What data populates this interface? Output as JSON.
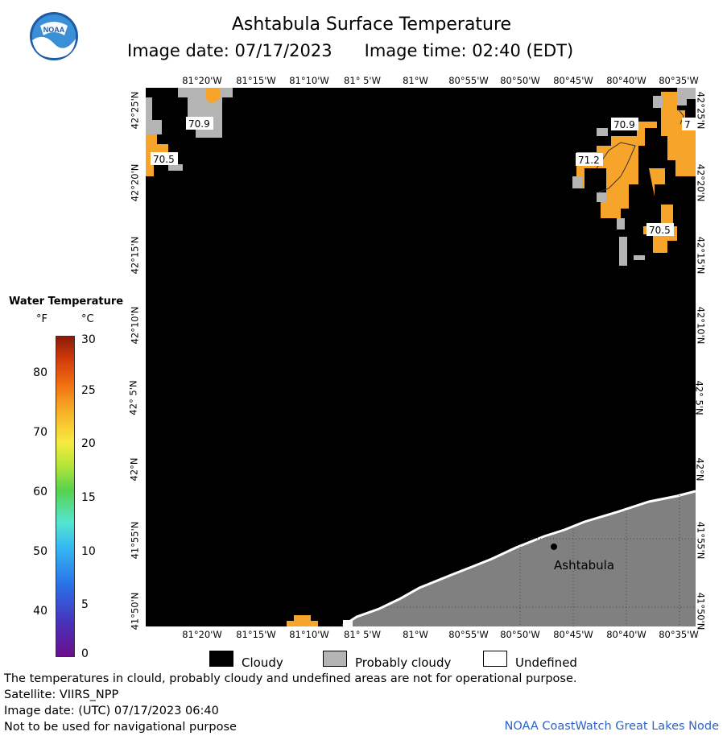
{
  "header": {
    "title": "Ashtabula Surface Temperature",
    "image_date_label": "Image date: 07/17/2023",
    "image_time_label": "Image time: 02:40 (EDT)",
    "logo_text": "NOAA"
  },
  "map": {
    "lon_labels": [
      "81°20'W",
      "81°15'W",
      "81°10'W",
      "81° 5'W",
      "81°W",
      "80°55'W",
      "80°50'W",
      "80°45'W",
      "80°40'W",
      "80°35'W"
    ],
    "lat_labels": [
      "42°25'N",
      "42°20'N",
      "42°15'N",
      "42°10'N",
      "42° 5'N",
      "42°N",
      "41°55'N",
      "41°50'N"
    ],
    "city_label": "Ashtabula",
    "isotherm_labels": [
      "70.9",
      "70.5",
      "70.9",
      "71.2",
      "70.5",
      "7"
    ],
    "colors": {
      "water_cloudy": "#000000",
      "probably_cloudy": "#b4b4b4",
      "land": "#808080",
      "warm": "#f7a42b",
      "undefined": "#ffffff"
    }
  },
  "legend": {
    "title": "Water Temperature",
    "unit_f": "°F",
    "unit_c": "°C",
    "f_ticks": [
      "80",
      "70",
      "60",
      "50",
      "40"
    ],
    "c_ticks": [
      "30",
      "25",
      "20",
      "15",
      "10",
      "5",
      "0"
    ],
    "cloudy": "Cloudy",
    "probably_cloudy": "Probably cloudy",
    "undefined": "Undefined"
  },
  "footer": {
    "line1": "The temperatures in clould, probably cloudy and undefined areas are not for operational purpose.",
    "line2": "Satellite: VIIRS_NPP",
    "line3": "Image date: (UTC) 07/17/2023  06:40",
    "line4": "Not to be used for navigational purpose",
    "credit": "NOAA CoastWatch Great Lakes Node"
  }
}
